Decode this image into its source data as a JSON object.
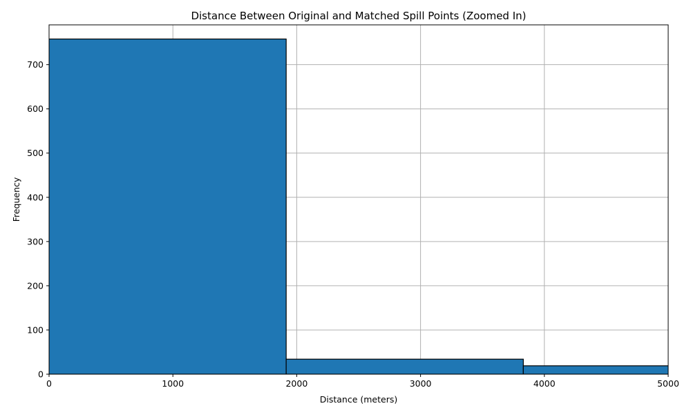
{
  "chart_data": {
    "type": "bar",
    "title": "Distance Between Original and Matched Spill Points (Zoomed In)",
    "xlabel": "Distance (meters)",
    "ylabel": "Frequency",
    "xlim": [
      0,
      5000
    ],
    "ylim": [
      0,
      790
    ],
    "x_ticks": [
      0,
      1000,
      2000,
      3000,
      4000,
      5000
    ],
    "x_tick_labels": [
      "0",
      "1000",
      "2000",
      "3000",
      "4000",
      "5000"
    ],
    "y_ticks": [
      0,
      100,
      200,
      300,
      400,
      500,
      600,
      700
    ],
    "y_tick_labels": [
      "0",
      "100",
      "200",
      "300",
      "400",
      "500",
      "600",
      "700"
    ],
    "grid": true,
    "bins": [
      {
        "x_start": 0,
        "x_end": 1915,
        "value": 758
      },
      {
        "x_start": 1915,
        "x_end": 3830,
        "value": 34
      },
      {
        "x_start": 3830,
        "x_end": 5745,
        "value": 19
      }
    ],
    "bar_color": "#1f77b4",
    "edge_color": "#000000",
    "grid_color": "#b0b0b0"
  }
}
